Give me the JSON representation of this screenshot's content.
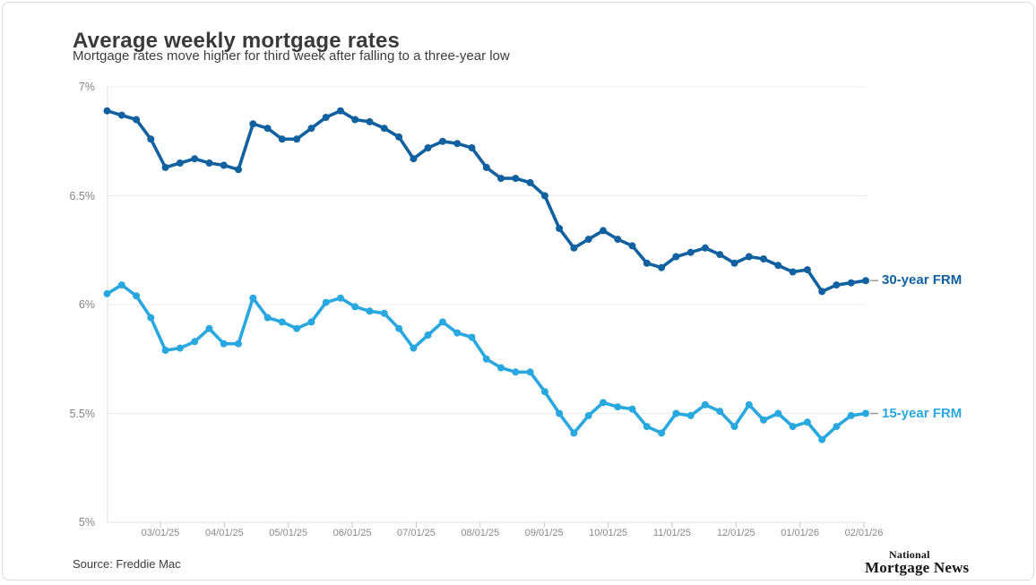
{
  "header": {
    "title": "Average weekly mortgage rates",
    "subtitle": "Mortgage rates move higher for third week after falling to a three-year low"
  },
  "footer": {
    "source": "Source: Freddie Mac",
    "logo_line1": "National",
    "logo_line2": "Mortgage News"
  },
  "chart_data": {
    "type": "line",
    "title": "Average weekly mortgage rates",
    "subtitle": "Mortgage rates move higher for third week after falling to a three-year low",
    "x_frequency": "weekly observations",
    "x_tick_labels": [
      "03/01/25",
      "04/01/25",
      "05/01/25",
      "06/01/25",
      "07/01/25",
      "08/01/25",
      "09/01/25",
      "10/01/25",
      "11/01/25",
      "12/01/25",
      "01/01/26",
      "02/01/26"
    ],
    "y_tick_labels": [
      "7%",
      "6.5%",
      "6%",
      "5.5%",
      "5%"
    ],
    "y_tick_values": [
      7,
      6.5,
      6,
      5.5,
      5
    ],
    "ylim": [
      5,
      7
    ],
    "grid": "horizontal",
    "legend_position": "right-of-line-end",
    "colors": {
      "series_30yr": "#11609f",
      "series_15yr": "#29a8e0",
      "gridline": "#ececec",
      "axis_line": "#e0e0e0",
      "tick": "#c8c8c8",
      "legend_connector": "#999999"
    },
    "series": [
      {
        "name": "30-year FRM",
        "color": "#11609f",
        "values": [
          6.89,
          6.87,
          6.85,
          6.76,
          6.63,
          6.65,
          6.67,
          6.65,
          6.64,
          6.62,
          6.83,
          6.81,
          6.76,
          6.76,
          6.81,
          6.86,
          6.89,
          6.85,
          6.84,
          6.81,
          6.77,
          6.67,
          6.72,
          6.75,
          6.74,
          6.72,
          6.63,
          6.58,
          6.58,
          6.56,
          6.5,
          6.35,
          6.26,
          6.3,
          6.34,
          6.3,
          6.27,
          6.19,
          6.17,
          6.22,
          6.24,
          6.26,
          6.23,
          6.19,
          6.22,
          6.21,
          6.18,
          6.15,
          6.16,
          6.06,
          6.09,
          6.1,
          6.11
        ]
      },
      {
        "name": "15-year FRM",
        "color": "#29a8e0",
        "values": [
          6.05,
          6.09,
          6.04,
          5.94,
          5.79,
          5.8,
          5.83,
          5.89,
          5.82,
          5.82,
          6.03,
          5.94,
          5.92,
          5.89,
          5.92,
          6.01,
          6.03,
          5.99,
          5.97,
          5.96,
          5.89,
          5.8,
          5.86,
          5.92,
          5.87,
          5.85,
          5.75,
          5.71,
          5.69,
          5.69,
          5.6,
          5.5,
          5.41,
          5.49,
          5.55,
          5.53,
          5.52,
          5.44,
          5.41,
          5.5,
          5.49,
          5.54,
          5.51,
          5.44,
          5.54,
          5.47,
          5.5,
          5.44,
          5.46,
          5.38,
          5.44,
          5.49,
          5.5
        ]
      }
    ]
  }
}
